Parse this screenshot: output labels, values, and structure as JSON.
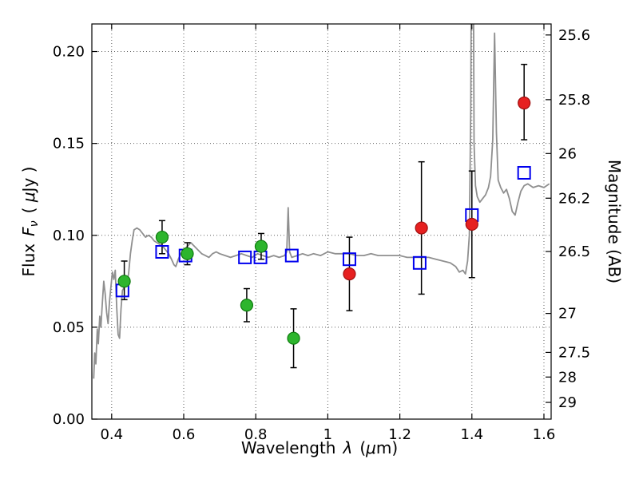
{
  "figure": {
    "background": "#ffffff"
  },
  "chart_data": {
    "type": "line+scatter",
    "title": "",
    "xlabel_parts": {
      "word": "Wavelength",
      "symbol": "λ",
      "unit_open": "(",
      "unit_mu": "μ",
      "unit_close": "m)"
    },
    "ylabel_left_parts": {
      "word": "Flux",
      "symbol": "F",
      "sub": "ν",
      "unit_open": "( ",
      "unit_mu": "μ",
      "unit_close": "Jy )"
    },
    "ylabel_right": "Magnitude (AB)",
    "xlim": [
      0.345,
      1.62
    ],
    "ylim": [
      0.0,
      0.215
    ],
    "grid": "dotted",
    "legend": "none",
    "x_ticks": [
      0.4,
      0.6,
      0.8,
      1.0,
      1.2,
      1.4,
      1.6
    ],
    "x_tick_labels": [
      "0.4",
      "0.6",
      "0.8",
      "1",
      "1.2",
      "1.4",
      "1.6"
    ],
    "y_ticks_left": [
      0.0,
      0.05,
      0.1,
      0.15,
      0.2
    ],
    "y_tick_labels_left": [
      "0.00",
      "0.05",
      "0.10",
      "0.15",
      "0.20"
    ],
    "y_ticks_right": [
      {
        "label": "25.6",
        "flux": 0.209
      },
      {
        "label": "25.8",
        "flux": 0.1738
      },
      {
        "label": "26",
        "flux": 0.1445
      },
      {
        "label": "26.2",
        "flux": 0.1202
      },
      {
        "label": "26.5",
        "flux": 0.0912
      },
      {
        "label": "27",
        "flux": 0.0575
      },
      {
        "label": "27.5",
        "flux": 0.0363
      },
      {
        "label": "28",
        "flux": 0.0229
      },
      {
        "label": "29",
        "flux": 0.0091
      }
    ],
    "colors": {
      "spectrum": "#8f8f8f",
      "green_points": "#2db52d",
      "green_edge": "#0e7a0e",
      "red_points": "#e62020",
      "red_edge": "#a01010",
      "blue_squares": "#0000ee",
      "errorbar": "#000000",
      "grid": "#606060",
      "axis": "#000000"
    },
    "series": [
      {
        "name": "model-spectrum",
        "type": "line",
        "x": [
          0.35,
          0.353,
          0.356,
          0.36,
          0.363,
          0.367,
          0.37,
          0.374,
          0.378,
          0.382,
          0.386,
          0.39,
          0.394,
          0.398,
          0.402,
          0.406,
          0.41,
          0.414,
          0.418,
          0.422,
          0.426,
          0.43,
          0.436,
          0.442,
          0.447,
          0.452,
          0.457,
          0.462,
          0.47,
          0.478,
          0.486,
          0.494,
          0.502,
          0.51,
          0.518,
          0.526,
          0.534,
          0.542,
          0.55,
          0.558,
          0.566,
          0.573,
          0.578,
          0.585,
          0.592,
          0.6,
          0.61,
          0.62,
          0.63,
          0.64,
          0.65,
          0.66,
          0.67,
          0.68,
          0.69,
          0.7,
          0.715,
          0.73,
          0.745,
          0.76,
          0.775,
          0.79,
          0.805,
          0.82,
          0.835,
          0.85,
          0.865,
          0.88,
          0.886,
          0.89,
          0.894,
          0.9,
          0.915,
          0.93,
          0.945,
          0.96,
          0.98,
          1.0,
          1.02,
          1.04,
          1.06,
          1.08,
          1.1,
          1.12,
          1.14,
          1.16,
          1.18,
          1.2,
          1.22,
          1.24,
          1.26,
          1.28,
          1.3,
          1.32,
          1.34,
          1.355,
          1.365,
          1.375,
          1.382,
          1.388,
          1.393,
          1.397,
          1.4,
          1.403,
          1.406,
          1.41,
          1.415,
          1.422,
          1.43,
          1.438,
          1.446,
          1.452,
          1.458,
          1.463,
          1.468,
          1.473,
          1.48,
          1.488,
          1.496,
          1.504,
          1.512,
          1.52,
          1.528,
          1.536,
          1.545,
          1.555,
          1.57,
          1.585,
          1.6,
          1.615
        ],
        "y": [
          0.022,
          0.036,
          0.03,
          0.049,
          0.041,
          0.056,
          0.05,
          0.063,
          0.075,
          0.068,
          0.058,
          0.052,
          0.064,
          0.072,
          0.08,
          0.076,
          0.081,
          0.061,
          0.046,
          0.044,
          0.06,
          0.07,
          0.072,
          0.074,
          0.079,
          0.09,
          0.097,
          0.103,
          0.104,
          0.103,
          0.101,
          0.099,
          0.1,
          0.099,
          0.097,
          0.096,
          0.095,
          0.094,
          0.092,
          0.09,
          0.087,
          0.084,
          0.083,
          0.087,
          0.09,
          0.092,
          0.094,
          0.096,
          0.094,
          0.092,
          0.09,
          0.089,
          0.088,
          0.09,
          0.091,
          0.09,
          0.089,
          0.088,
          0.089,
          0.09,
          0.089,
          0.088,
          0.09,
          0.089,
          0.088,
          0.089,
          0.088,
          0.089,
          0.091,
          0.115,
          0.091,
          0.088,
          0.089,
          0.09,
          0.089,
          0.09,
          0.089,
          0.091,
          0.09,
          0.09,
          0.09,
          0.089,
          0.089,
          0.09,
          0.089,
          0.089,
          0.089,
          0.089,
          0.088,
          0.088,
          0.088,
          0.088,
          0.087,
          0.086,
          0.085,
          0.083,
          0.08,
          0.081,
          0.079,
          0.086,
          0.1,
          0.17,
          0.31,
          0.31,
          0.15,
          0.127,
          0.121,
          0.118,
          0.12,
          0.122,
          0.126,
          0.132,
          0.152,
          0.21,
          0.156,
          0.13,
          0.126,
          0.123,
          0.125,
          0.12,
          0.113,
          0.111,
          0.118,
          0.124,
          0.127,
          0.128,
          0.126,
          0.127,
          0.126,
          0.128
        ]
      },
      {
        "name": "photometry-green",
        "type": "scatter",
        "marker": "filled-circle",
        "points": [
          {
            "x": 0.435,
            "y": 0.075,
            "err_lo": 0.065,
            "err_hi": 0.086
          },
          {
            "x": 0.54,
            "y": 0.099,
            "err_lo": 0.09,
            "err_hi": 0.108
          },
          {
            "x": 0.61,
            "y": 0.09,
            "err_lo": 0.084,
            "err_hi": 0.096
          },
          {
            "x": 0.775,
            "y": 0.062,
            "err_lo": 0.053,
            "err_hi": 0.071
          },
          {
            "x": 0.815,
            "y": 0.094,
            "err_lo": 0.087,
            "err_hi": 0.101
          },
          {
            "x": 0.905,
            "y": 0.044,
            "err_lo": 0.028,
            "err_hi": 0.06
          }
        ]
      },
      {
        "name": "photometry-red",
        "type": "scatter",
        "marker": "filled-circle",
        "points": [
          {
            "x": 1.06,
            "y": 0.079,
            "err_lo": 0.059,
            "err_hi": 0.099
          },
          {
            "x": 1.26,
            "y": 0.104,
            "err_lo": 0.068,
            "err_hi": 0.14
          },
          {
            "x": 1.4,
            "y": 0.106,
            "err_lo": 0.077,
            "err_hi": 0.135
          },
          {
            "x": 1.545,
            "y": 0.172,
            "err_lo": 0.152,
            "err_hi": 0.193
          }
        ]
      },
      {
        "name": "model-photometry-blue",
        "type": "scatter",
        "marker": "open-square",
        "points": [
          {
            "x": 0.43,
            "y": 0.07
          },
          {
            "x": 0.54,
            "y": 0.091
          },
          {
            "x": 0.605,
            "y": 0.089
          },
          {
            "x": 0.77,
            "y": 0.088
          },
          {
            "x": 0.813,
            "y": 0.088
          },
          {
            "x": 0.9,
            "y": 0.089
          },
          {
            "x": 1.06,
            "y": 0.087
          },
          {
            "x": 1.255,
            "y": 0.085
          },
          {
            "x": 1.4,
            "y": 0.111
          },
          {
            "x": 1.545,
            "y": 0.134
          }
        ]
      }
    ]
  }
}
